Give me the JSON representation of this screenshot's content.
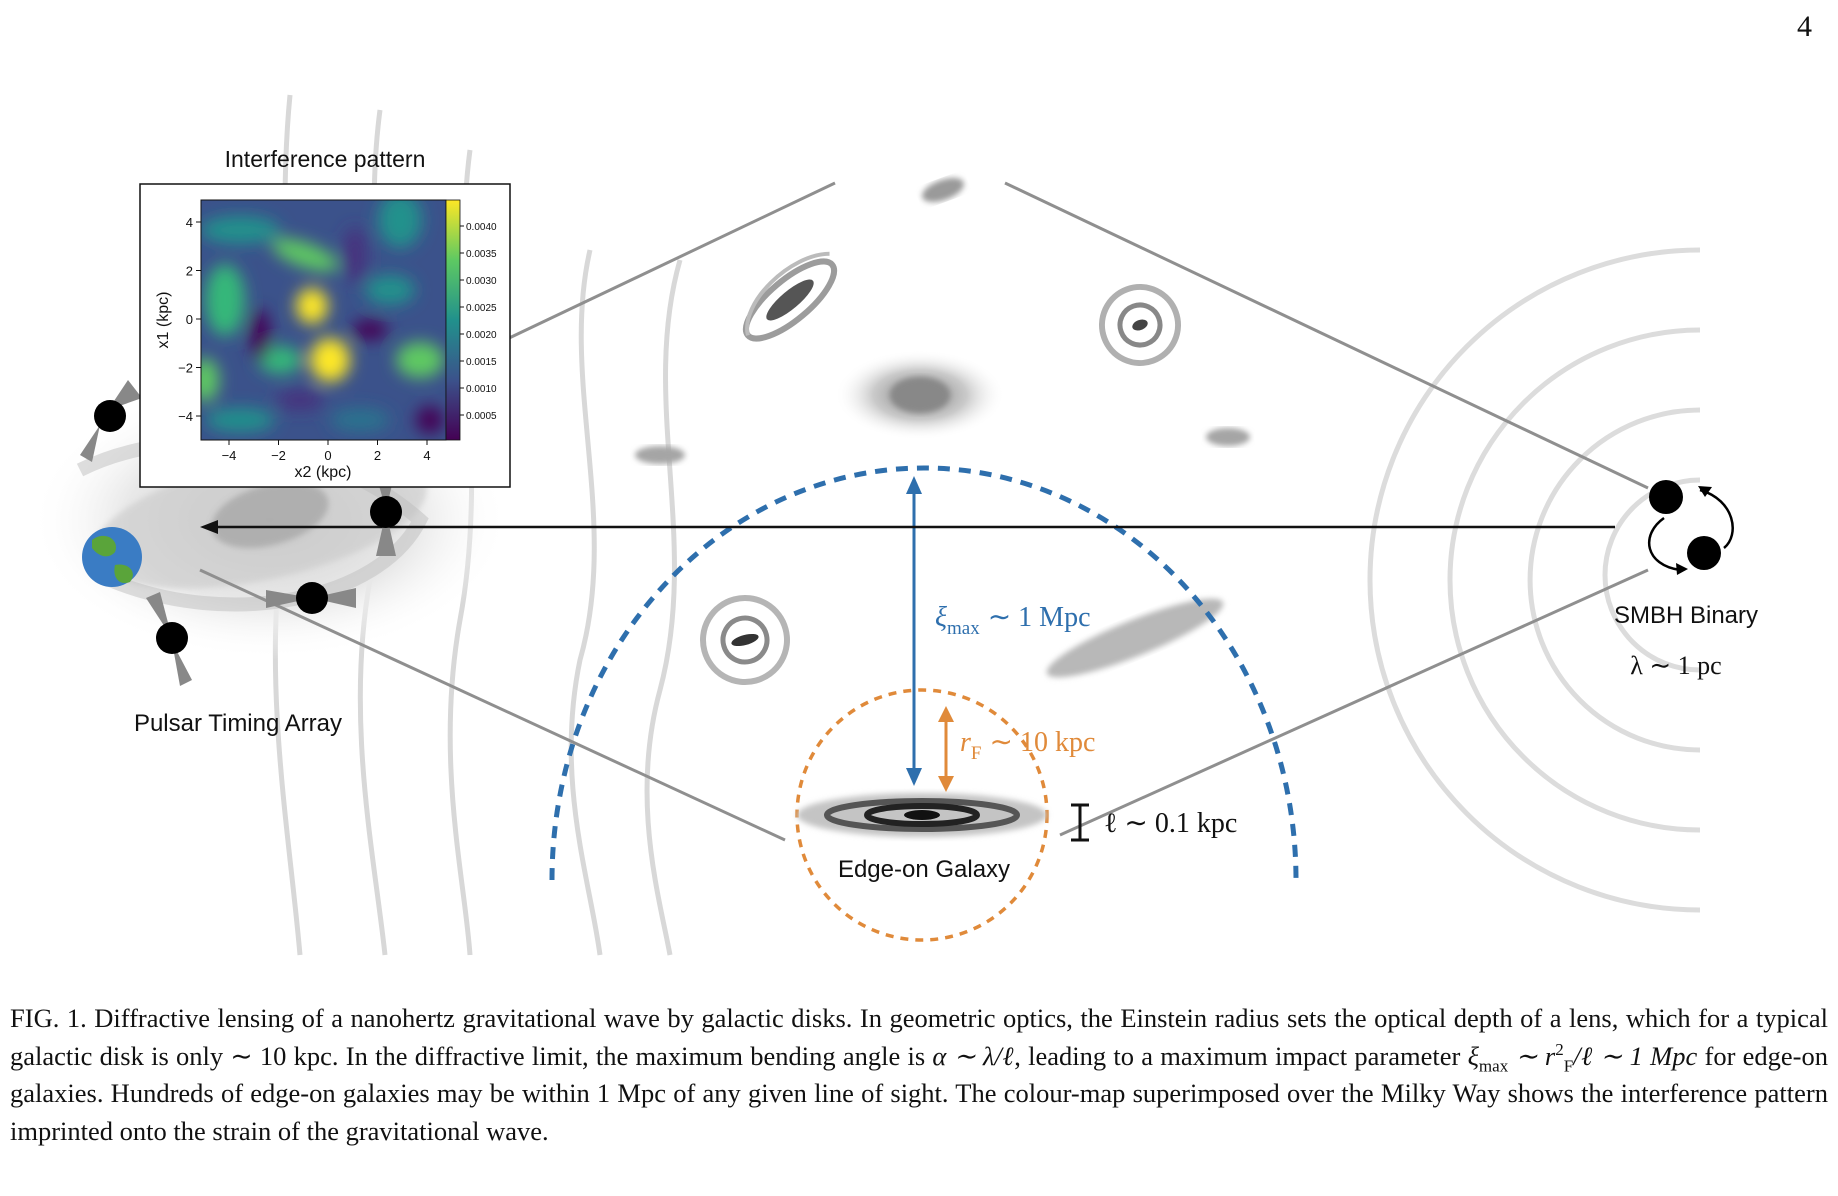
{
  "page_number": "4",
  "figure": {
    "inset": {
      "title": "Interference pattern",
      "y_label": "x1 (kpc)",
      "x_label": "x2 (kpc)",
      "x_ticks": [
        "−4",
        "−2",
        "0",
        "2",
        "4"
      ],
      "y_ticks": [
        "4",
        "2",
        "0",
        "−2",
        "−4"
      ],
      "colorbar_ticks": [
        "0.0040",
        "0.0035",
        "0.0030",
        "0.0025",
        "0.0020",
        "0.0015",
        "0.0010",
        "0.0005"
      ],
      "colormap": "viridis"
    },
    "labels": {
      "pta": "Pulsar Timing Array",
      "smbh": "SMBH Binary",
      "lambda": "λ ∼ 1 pc",
      "xi_symbol": "ξ",
      "xi_sub": "max",
      "xi_value": "∼ 1 Mpc",
      "rf_symbol": "r",
      "rf_sub": "F",
      "rf_value": "∼ 10 kpc",
      "ell": "ℓ ∼ 0.1 kpc",
      "edge_on": "Edge-on Galaxy"
    },
    "colors": {
      "xi": "#2e6fad",
      "rf": "#e08a3a",
      "lines": "#8f8f8f",
      "waves": "#d8d8d8"
    }
  },
  "caption": {
    "p1": "FIG. 1. Diffractive lensing of a nanohertz gravitational wave by galactic disks. In geometric optics, the Einstein radius sets the optical depth of a lens, which for a typical galactic disk is only ∼ 10 kpc. In the diffractive limit, the maximum bending angle is ",
    "p2": "α ∼ λ/ℓ",
    "p3": ", leading to a maximum impact parameter ",
    "p4_xi": "ξ",
    "p4_sub": "max",
    "p4_mid": " ∼ r",
    "p4_sup": "2",
    "p4_sub2": "F",
    "p4_end": "/ℓ ∼ 1 Mpc",
    "p5": " for edge-on galaxies. Hundreds of edge-on galaxies may be within 1 Mpc of any given line of sight. The colour-map superimposed over the Milky Way shows the interference pattern imprinted onto the strain of the gravitational wave."
  }
}
